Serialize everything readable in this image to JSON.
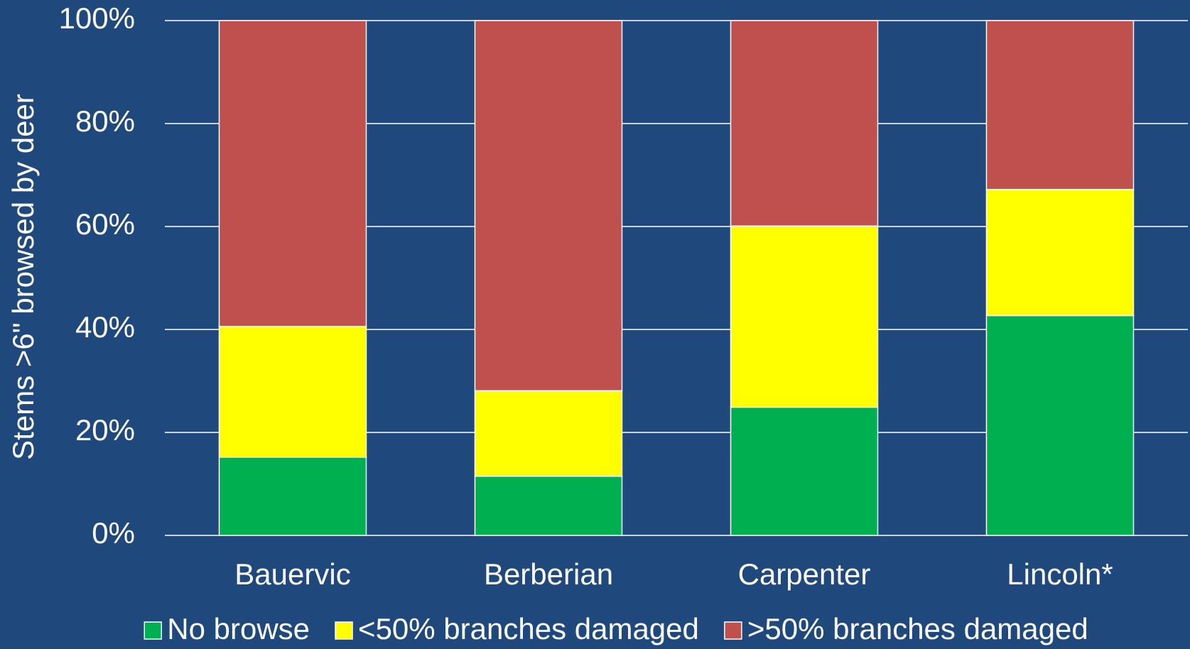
{
  "chart_data": {
    "type": "stacked_bar",
    "y_label": "Stems >6\" browsed by deer",
    "categories": [
      "Bauervic",
      "Berberian",
      "Carpenter",
      "Lincoln*"
    ],
    "series": [
      {
        "name": "No browse",
        "color": "#00b050",
        "values": [
          15.2,
          11.5,
          24.9,
          42.7
        ]
      },
      {
        "name": "<50% branches damaged",
        "color": "#ffff00",
        "values": [
          25.4,
          16.6,
          35.2,
          24.5
        ]
      },
      {
        "name": ">50% branches damaged",
        "color": "#c0504d",
        "values": [
          59.4,
          71.9,
          39.9,
          32.8
        ]
      }
    ],
    "ylim": [
      0,
      100
    ],
    "yticks": [
      {
        "value": 0,
        "label": "0%"
      },
      {
        "value": 20,
        "label": "20%"
      },
      {
        "value": 40,
        "label": "40%"
      },
      {
        "value": 60,
        "label": "60%"
      },
      {
        "value": 80,
        "label": "80%"
      },
      {
        "value": 100,
        "label": "100%"
      }
    ],
    "grid": true
  }
}
